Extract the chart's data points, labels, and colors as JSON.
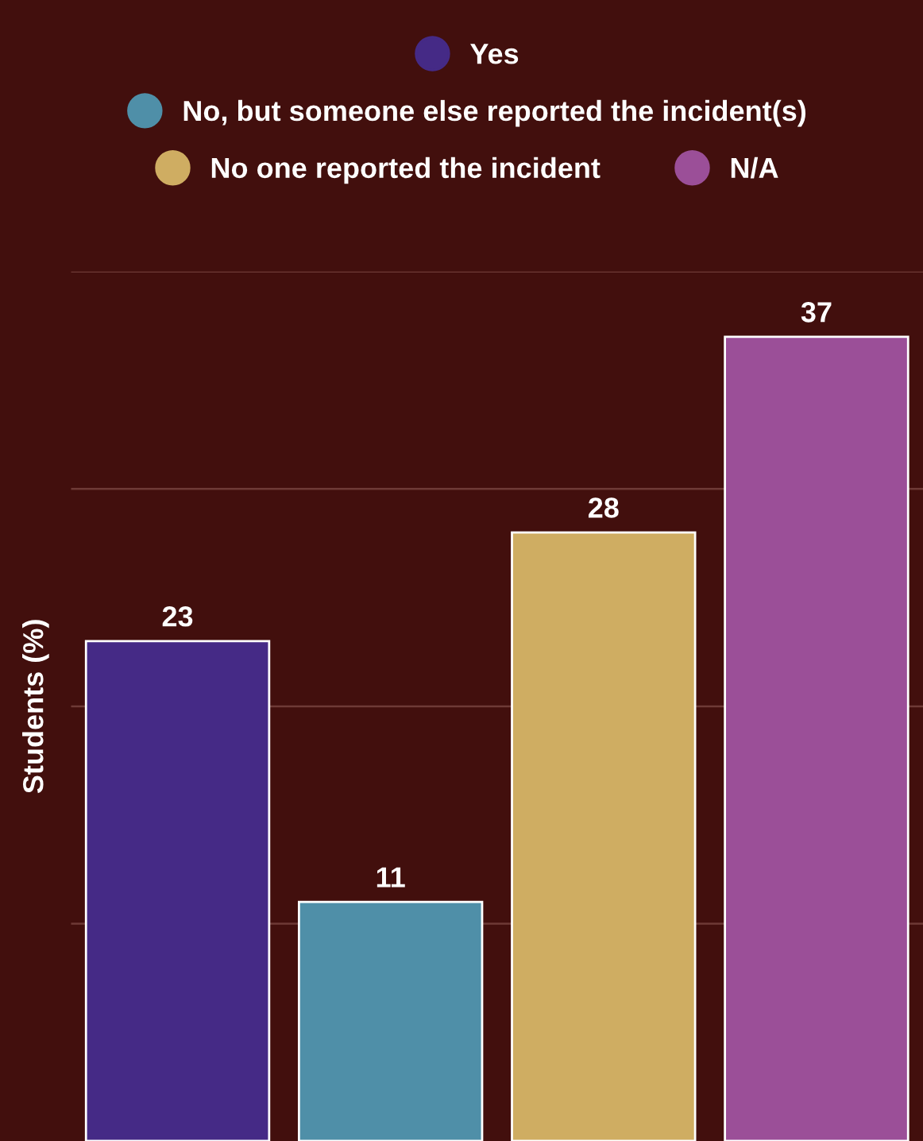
{
  "chart_data": {
    "type": "bar",
    "ylabel": "Students (%)",
    "categories": [
      null,
      null,
      null,
      null
    ],
    "values": [
      23,
      11,
      28,
      37
    ],
    "colors": [
      "#452a86",
      "#4f8fa8",
      "#cfad62",
      "#9b4f98"
    ],
    "annotations": [
      "Yes",
      "No, but someone else reported the incident(s)",
      "No one reported the incident",
      "N/A"
    ],
    "ylim": [
      0,
      40
    ],
    "yticks": [
      {
        "value": 10,
        "label": null
      },
      {
        "value": 20,
        "label": null
      },
      {
        "value": 30,
        "label": null
      },
      {
        "value": 40,
        "label": null
      }
    ],
    "grid": "y",
    "tick_labels": false,
    "data_labels": true
  }
}
